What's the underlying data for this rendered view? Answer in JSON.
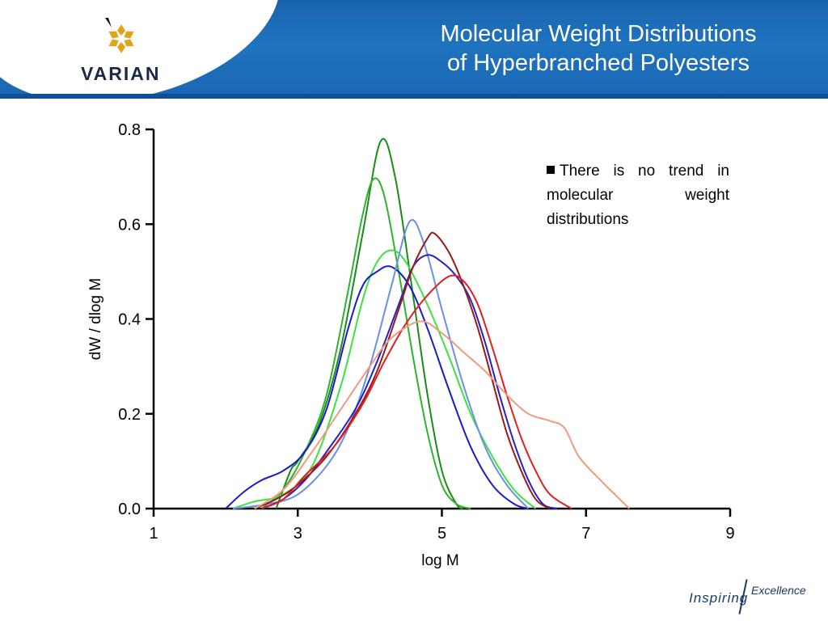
{
  "header": {
    "brand": "VARIAN",
    "title_line1": "Molecular Weight Distributions",
    "title_line2": "of Hyperbranched Polyesters"
  },
  "note": {
    "text": "There is no trend in molecular weight distributions"
  },
  "footer": {
    "tagline_a": "Inspiring",
    "tagline_b": "Excellence"
  },
  "colors": {
    "header_blue": "#1f73bf",
    "brand_gold": "#e0a418"
  },
  "chart_data": {
    "type": "line",
    "title": "",
    "xlabel": "log M",
    "ylabel": "dW / dlog M",
    "xlim": [
      1,
      9
    ],
    "ylim": [
      0,
      0.8
    ],
    "xticks": [
      "1",
      "3",
      "5",
      "7",
      "9"
    ],
    "yticks": [
      "0.0",
      "0.2",
      "0.4",
      "0.6",
      "0.8"
    ],
    "grid": false,
    "series": [
      {
        "color": "#1a8a1a",
        "points": [
          [
            2.7,
            0
          ],
          [
            2.9,
            0.08
          ],
          [
            3.0,
            0.1
          ],
          [
            3.3,
            0.18
          ],
          [
            3.6,
            0.34
          ],
          [
            3.9,
            0.58
          ],
          [
            4.15,
            0.775
          ],
          [
            4.35,
            0.7
          ],
          [
            4.6,
            0.45
          ],
          [
            4.8,
            0.24
          ],
          [
            5.0,
            0.08
          ],
          [
            5.2,
            0.01
          ],
          [
            5.3,
            0
          ]
        ]
      },
      {
        "color": "#2db32d",
        "points": [
          [
            2.5,
            0
          ],
          [
            2.8,
            0.04
          ],
          [
            3.1,
            0.12
          ],
          [
            3.4,
            0.24
          ],
          [
            3.7,
            0.46
          ],
          [
            3.9,
            0.62
          ],
          [
            4.05,
            0.695
          ],
          [
            4.2,
            0.66
          ],
          [
            4.4,
            0.5
          ],
          [
            4.6,
            0.32
          ],
          [
            4.8,
            0.16
          ],
          [
            5.0,
            0.05
          ],
          [
            5.2,
            0.01
          ],
          [
            5.4,
            0
          ]
        ]
      },
      {
        "color": "#3ee23e",
        "points": [
          [
            2.1,
            0
          ],
          [
            2.4,
            0.015
          ],
          [
            2.8,
            0.03
          ],
          [
            3.2,
            0.09
          ],
          [
            3.6,
            0.26
          ],
          [
            3.9,
            0.44
          ],
          [
            4.1,
            0.52
          ],
          [
            4.3,
            0.545
          ],
          [
            4.5,
            0.52
          ],
          [
            4.8,
            0.43
          ],
          [
            5.1,
            0.32
          ],
          [
            5.4,
            0.2
          ],
          [
            5.7,
            0.11
          ],
          [
            6.0,
            0.04
          ],
          [
            6.3,
            0
          ]
        ]
      },
      {
        "color": "#1a1acc",
        "points": [
          [
            2.0,
            0
          ],
          [
            2.25,
            0.035
          ],
          [
            2.5,
            0.06
          ],
          [
            2.8,
            0.08
          ],
          [
            3.1,
            0.12
          ],
          [
            3.4,
            0.21
          ],
          [
            3.7,
            0.38
          ],
          [
            3.9,
            0.47
          ],
          [
            4.1,
            0.5
          ],
          [
            4.3,
            0.51
          ],
          [
            4.55,
            0.47
          ],
          [
            4.8,
            0.38
          ],
          [
            5.1,
            0.25
          ],
          [
            5.4,
            0.13
          ],
          [
            5.7,
            0.05
          ],
          [
            6.0,
            0.01
          ],
          [
            6.2,
            0
          ]
        ]
      },
      {
        "color": "#6a8fe6",
        "points": [
          [
            2.1,
            0
          ],
          [
            2.6,
            0.01
          ],
          [
            3.0,
            0.03
          ],
          [
            3.4,
            0.09
          ],
          [
            3.7,
            0.17
          ],
          [
            4.0,
            0.3
          ],
          [
            4.3,
            0.47
          ],
          [
            4.55,
            0.605
          ],
          [
            4.75,
            0.56
          ],
          [
            5.0,
            0.42
          ],
          [
            5.3,
            0.26
          ],
          [
            5.6,
            0.13
          ],
          [
            5.9,
            0.05
          ],
          [
            6.2,
            0
          ]
        ]
      },
      {
        "color": "#2222c8",
        "points": [
          [
            2.5,
            0
          ],
          [
            2.8,
            0.02
          ],
          [
            3.1,
            0.06
          ],
          [
            3.4,
            0.12
          ],
          [
            3.8,
            0.21
          ],
          [
            4.1,
            0.31
          ],
          [
            4.4,
            0.43
          ],
          [
            4.6,
            0.51
          ],
          [
            4.8,
            0.535
          ],
          [
            5.0,
            0.52
          ],
          [
            5.2,
            0.49
          ],
          [
            5.4,
            0.44
          ],
          [
            5.6,
            0.35
          ],
          [
            5.8,
            0.24
          ],
          [
            6.0,
            0.14
          ],
          [
            6.2,
            0.06
          ],
          [
            6.4,
            0.01
          ],
          [
            6.6,
            0
          ]
        ]
      },
      {
        "color": "#991a1a",
        "points": [
          [
            2.4,
            0
          ],
          [
            2.7,
            0.02
          ],
          [
            3.0,
            0.05
          ],
          [
            3.4,
            0.11
          ],
          [
            3.8,
            0.2
          ],
          [
            4.1,
            0.29
          ],
          [
            4.4,
            0.42
          ],
          [
            4.6,
            0.51
          ],
          [
            4.8,
            0.57
          ],
          [
            4.9,
            0.58
          ],
          [
            5.1,
            0.54
          ],
          [
            5.3,
            0.47
          ],
          [
            5.5,
            0.38
          ],
          [
            5.7,
            0.27
          ],
          [
            5.9,
            0.16
          ],
          [
            6.1,
            0.08
          ],
          [
            6.3,
            0.02
          ],
          [
            6.5,
            0
          ]
        ]
      },
      {
        "color": "#e02020",
        "points": [
          [
            2.5,
            0
          ],
          [
            2.8,
            0.02
          ],
          [
            3.1,
            0.07
          ],
          [
            3.5,
            0.13
          ],
          [
            3.9,
            0.22
          ],
          [
            4.2,
            0.31
          ],
          [
            4.5,
            0.39
          ],
          [
            4.8,
            0.45
          ],
          [
            5.1,
            0.49
          ],
          [
            5.3,
            0.48
          ],
          [
            5.5,
            0.43
          ],
          [
            5.7,
            0.34
          ],
          [
            5.9,
            0.24
          ],
          [
            6.1,
            0.15
          ],
          [
            6.3,
            0.08
          ],
          [
            6.5,
            0.03
          ],
          [
            6.8,
            0
          ]
        ]
      },
      {
        "color": "#f09a80",
        "points": [
          [
            2.4,
            0
          ],
          [
            2.8,
            0.04
          ],
          [
            3.2,
            0.12
          ],
          [
            3.6,
            0.21
          ],
          [
            4.0,
            0.3
          ],
          [
            4.3,
            0.36
          ],
          [
            4.7,
            0.395
          ],
          [
            5.0,
            0.37
          ],
          [
            5.3,
            0.33
          ],
          [
            5.6,
            0.29
          ],
          [
            5.9,
            0.24
          ],
          [
            6.2,
            0.2
          ],
          [
            6.5,
            0.185
          ],
          [
            6.7,
            0.17
          ],
          [
            6.9,
            0.11
          ],
          [
            7.2,
            0.06
          ],
          [
            7.4,
            0.03
          ],
          [
            7.6,
            0
          ]
        ]
      }
    ]
  }
}
